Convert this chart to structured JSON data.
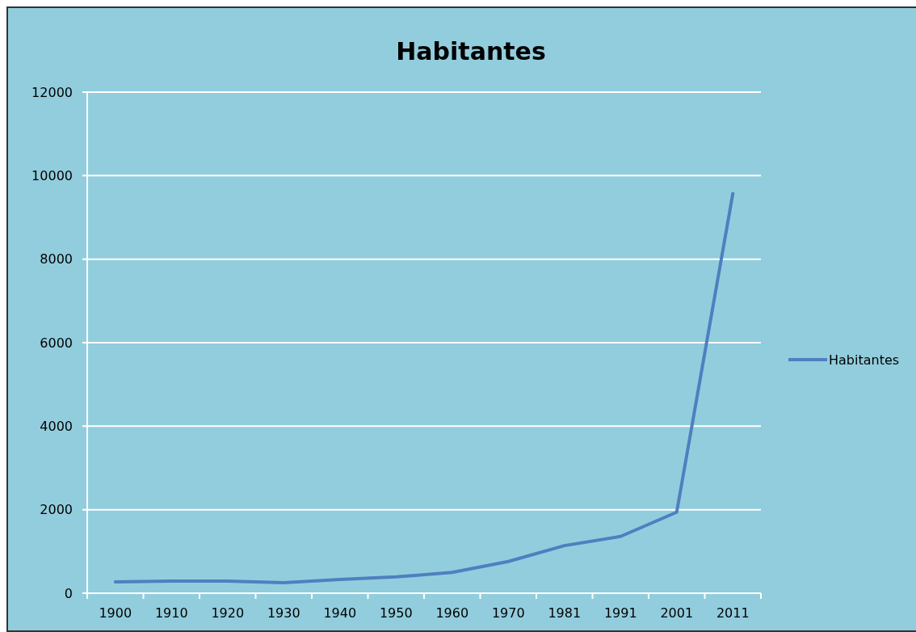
{
  "chart_data": {
    "type": "line",
    "title": "Habitantes",
    "categories": [
      "1900",
      "1910",
      "1920",
      "1930",
      "1940",
      "1950",
      "1960",
      "1970",
      "1981",
      "1991",
      "2001",
      "2011"
    ],
    "series": [
      {
        "name": "Habitantes",
        "color": "#4f7fc0",
        "values": [
          270,
          290,
          290,
          250,
          330,
          390,
          500,
          760,
          1140,
          1360,
          1940,
          9570
        ]
      }
    ],
    "ylim": [
      0,
      12000
    ],
    "yticks": [
      0,
      2000,
      4000,
      6000,
      8000,
      10000,
      12000
    ],
    "grid": "y",
    "legend": "right",
    "marker": "none",
    "line_style": "solid"
  }
}
